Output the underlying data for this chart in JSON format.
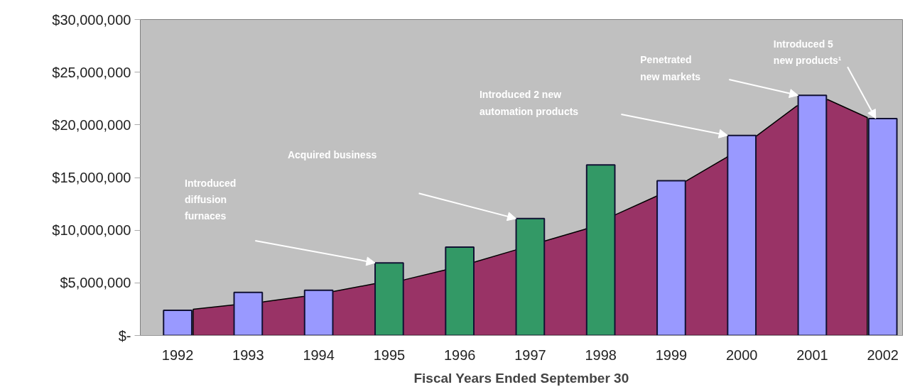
{
  "chart_data": {
    "type": "bar",
    "xlabel": "Fiscal Years Ended September 30",
    "x": [
      1992,
      1993,
      1994,
      1995,
      1996,
      1997,
      1998,
      1999,
      2000,
      2001,
      2002
    ],
    "xlim": [
      1991.47,
      2002.28
    ],
    "xticks": [
      1992,
      1993,
      1994,
      1995,
      1996,
      1997,
      1998,
      1999,
      2000,
      2001,
      2002
    ],
    "series": [
      {
        "type": "area",
        "color": "#993366",
        "x": [
          1992.22,
          1992.78,
          1993.22,
          1993.78,
          1994.22,
          1994.78,
          1995.22,
          1995.78,
          1996.22,
          1996.78,
          1997.22,
          1997.78,
          1998.22,
          1998.78,
          1999.22,
          1999.78,
          2000.22,
          2000.78,
          2001.22,
          2001.78
        ],
        "values": [
          2500000,
          2900000,
          3200000,
          3700000,
          4200000,
          4900000,
          5300000,
          6200000,
          7000000,
          8100000,
          9000000,
          10100000,
          11500000,
          13200000,
          14700000,
          16900000,
          19000000,
          21800000,
          22400000,
          20700000
        ]
      },
      {
        "colors": [
          "#9999ff",
          "#9999ff",
          "#9999ff",
          "#339966",
          "#339966",
          "#339966",
          "#339966",
          "#9999ff",
          "#9999ff",
          "#9999ff",
          "#9999ff"
        ],
        "values": [
          2400000,
          4100000,
          4300000,
          6900000,
          8400000,
          11100000,
          16200000,
          14700000,
          19000000,
          22800000,
          20600000
        ]
      }
    ],
    "ylim": [
      0,
      30000000
    ],
    "yticks": [
      {
        "value": 0,
        "label": "$-"
      },
      {
        "value": 5000000,
        "label": "$5,000,000"
      },
      {
        "value": 10000000,
        "label": "$10,000,000"
      },
      {
        "value": 15000000,
        "label": "$15,000,000"
      },
      {
        "value": 20000000,
        "label": "$20,000,000"
      },
      {
        "value": 25000000,
        "label": "$25,000,000"
      },
      {
        "value": 30000000,
        "label": "$30,000,000"
      }
    ],
    "grid": false,
    "annotations": [
      "Introduced diffusion furnaces",
      "Acquired business",
      "Introduced 2 new automation products",
      "Penetrated new markets",
      {
        "text": "Introduced 5 new products¹",
        "x": 2001.9,
        "y": 20600000
      }
    ]
  }
}
